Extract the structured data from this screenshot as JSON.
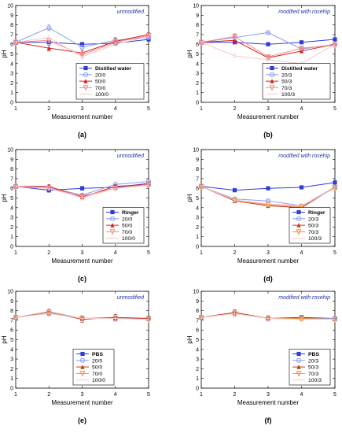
{
  "chart_data": [
    {
      "type": "line",
      "panel_label": "(a)",
      "annotation": "unmodified",
      "xlabel": "Measurement number",
      "ylabel": "pH",
      "xlim": [
        1,
        5
      ],
      "ylim": [
        0,
        10
      ],
      "x_ticks": [
        1,
        2,
        3,
        4,
        5
      ],
      "y_ticks": [
        0,
        1,
        2,
        3,
        4,
        5,
        6,
        7,
        8,
        9,
        10
      ],
      "grid": false,
      "legend_position": "bottom-right",
      "x": [
        1,
        2,
        3,
        4,
        5
      ],
      "series": [
        {
          "name": "Distilled water",
          "color": "#2c3ed6",
          "marker": "square",
          "values": [
            6.2,
            6.2,
            6.0,
            6.1,
            6.5
          ],
          "errors": [
            0.1,
            0.15,
            0.2,
            0.15,
            0.15
          ]
        },
        {
          "name": "20/0",
          "color": "#8a9cf2",
          "marker": "circle",
          "values": [
            6.2,
            7.7,
            5.7,
            6.4,
            6.7
          ],
          "errors": [
            0.1,
            0.3,
            0.2,
            0.3,
            0.2
          ]
        },
        {
          "name": "50/0",
          "color": "#d42222",
          "marker": "triangle",
          "values": [
            6.2,
            5.6,
            5.1,
            6.3,
            7.0
          ],
          "errors": [
            0.1,
            0.3,
            0.25,
            0.3,
            0.2
          ]
        },
        {
          "name": "70/0",
          "color": "#f48a8a",
          "marker": "triangle-down",
          "values": [
            6.2,
            6.4,
            4.9,
            6.2,
            6.9
          ],
          "errors": [
            0.1,
            0.25,
            0.3,
            0.3,
            0.2
          ]
        },
        {
          "name": "100/0",
          "color": "#f6c8c8",
          "marker": "none",
          "values": [
            6.2,
            6.7,
            4.7,
            6.0,
            6.8
          ],
          "errors": [
            0.1,
            0.2,
            0.3,
            0.2,
            0.2
          ]
        }
      ]
    },
    {
      "type": "line",
      "panel_label": "(b)",
      "annotation": "modified with rosehip",
      "xlabel": "Measurement number",
      "ylabel": "pH",
      "xlim": [
        1,
        5
      ],
      "ylim": [
        0,
        10
      ],
      "x_ticks": [
        1,
        2,
        3,
        4,
        5
      ],
      "y_ticks": [
        0,
        1,
        2,
        3,
        4,
        5,
        6,
        7,
        8,
        9,
        10
      ],
      "grid": false,
      "legend_position": "bottom-right",
      "x": [
        1,
        2,
        3,
        4,
        5
      ],
      "series": [
        {
          "name": "Distilled water",
          "color": "#2c3ed6",
          "marker": "square",
          "values": [
            6.2,
            6.2,
            6.0,
            6.2,
            6.5
          ],
          "errors": [
            0.1,
            0.15,
            0.15,
            0.15,
            0.15
          ]
        },
        {
          "name": "20/3",
          "color": "#8a9cf2",
          "marker": "circle",
          "values": [
            6.2,
            6.7,
            7.2,
            5.5,
            6.0
          ],
          "errors": [
            0.1,
            0.3,
            0.2,
            0.2,
            0.2
          ]
        },
        {
          "name": "50/3",
          "color": "#d42222",
          "marker": "triangle",
          "values": [
            6.2,
            6.4,
            4.6,
            5.3,
            6.0
          ],
          "errors": [
            0.1,
            0.3,
            0.2,
            0.2,
            0.2
          ]
        },
        {
          "name": "70/3",
          "color": "#f48a8a",
          "marker": "triangle-down",
          "values": [
            6.2,
            6.8,
            4.7,
            5.6,
            5.9
          ],
          "errors": [
            0.1,
            0.3,
            0.2,
            0.2,
            0.2
          ]
        },
        {
          "name": "100/3",
          "color": "#f6c8c8",
          "marker": "none",
          "values": [
            6.2,
            4.8,
            4.4,
            4.0,
            6.0
          ],
          "errors": [
            0.1,
            0.2,
            0.2,
            0.2,
            0.2
          ]
        }
      ]
    },
    {
      "type": "line",
      "panel_label": "(c)",
      "annotation": "unmodified",
      "xlabel": "Measurement number",
      "ylabel": "pH",
      "xlim": [
        1,
        5
      ],
      "ylim": [
        0,
        10
      ],
      "x_ticks": [
        1,
        2,
        3,
        4,
        5
      ],
      "y_ticks": [
        0,
        1,
        2,
        3,
        4,
        5,
        6,
        7,
        8,
        9,
        10
      ],
      "grid": false,
      "legend_position": "bottom-right",
      "x": [
        1,
        2,
        3,
        4,
        5
      ],
      "series": [
        {
          "name": "Ringer",
          "color": "#2c3ed6",
          "marker": "square",
          "values": [
            6.2,
            5.8,
            6.0,
            6.1,
            6.5
          ],
          "errors": [
            0.1,
            0.2,
            0.2,
            0.2,
            0.15
          ]
        },
        {
          "name": "20/0",
          "color": "#8a9cf2",
          "marker": "circle",
          "values": [
            6.2,
            6.1,
            5.3,
            6.4,
            6.7
          ],
          "errors": [
            0.1,
            0.2,
            0.2,
            0.2,
            0.2
          ]
        },
        {
          "name": "50/0",
          "color": "#d42222",
          "marker": "triangle",
          "values": [
            6.2,
            6.2,
            5.1,
            6.2,
            6.4
          ],
          "errors": [
            0.1,
            0.2,
            0.2,
            0.2,
            0.2
          ]
        },
        {
          "name": "70/0",
          "color": "#f48a8a",
          "marker": "triangle-down",
          "values": [
            6.2,
            6.0,
            5.2,
            6.0,
            6.4
          ],
          "errors": [
            0.1,
            0.2,
            0.2,
            0.2,
            0.2
          ]
        },
        {
          "name": "100/0",
          "color": "#f6c8c8",
          "marker": "none",
          "values": [
            6.2,
            6.0,
            5.0,
            6.0,
            6.3
          ],
          "errors": [
            0.1,
            0.2,
            0.2,
            0.2,
            0.2
          ]
        }
      ]
    },
    {
      "type": "line",
      "panel_label": "(d)",
      "annotation": "modified with rosehip",
      "xlabel": "Measurement number",
      "ylabel": "pH",
      "xlim": [
        1,
        5
      ],
      "ylim": [
        0,
        10
      ],
      "x_ticks": [
        1,
        2,
        3,
        4,
        5
      ],
      "y_ticks": [
        0,
        1,
        2,
        3,
        4,
        5,
        6,
        7,
        8,
        9,
        10
      ],
      "grid": false,
      "legend_position": "bottom-right",
      "x": [
        1,
        2,
        3,
        4,
        5
      ],
      "series": [
        {
          "name": "Ringer",
          "color": "#2c3ed6",
          "marker": "square",
          "values": [
            6.2,
            5.8,
            6.0,
            6.1,
            6.6
          ],
          "errors": [
            0.1,
            0.15,
            0.15,
            0.15,
            0.15
          ]
        },
        {
          "name": "20/3",
          "color": "#8a9cf2",
          "marker": "circle",
          "values": [
            6.2,
            4.9,
            4.7,
            4.2,
            6.1
          ],
          "errors": [
            0.1,
            0.2,
            0.2,
            0.2,
            0.2
          ]
        },
        {
          "name": "50/3",
          "color": "#c33a1a",
          "marker": "triangle",
          "values": [
            6.2,
            4.7,
            4.2,
            4.0,
            6.1
          ],
          "errors": [
            0.1,
            0.2,
            0.2,
            0.2,
            0.2
          ]
        },
        {
          "name": "70/3",
          "color": "#f0903c",
          "marker": "triangle-down",
          "values": [
            6.2,
            4.8,
            4.3,
            4.1,
            6.1
          ],
          "errors": [
            0.1,
            0.2,
            0.2,
            0.2,
            0.2
          ]
        },
        {
          "name": "100/3",
          "color": "#f6c8c8",
          "marker": "none",
          "values": [
            6.2,
            4.8,
            4.4,
            4.2,
            6.0
          ],
          "errors": [
            0.1,
            0.2,
            0.2,
            0.2,
            0.2
          ]
        }
      ]
    },
    {
      "type": "line",
      "panel_label": "(e)",
      "annotation": "unmodified",
      "xlabel": "Measurement number",
      "ylabel": "pH",
      "xlim": [
        1,
        5
      ],
      "ylim": [
        0,
        10
      ],
      "x_ticks": [
        1,
        2,
        3,
        4,
        5
      ],
      "y_ticks": [
        0,
        1,
        2,
        3,
        4,
        5,
        6,
        7,
        8,
        9,
        10
      ],
      "grid": false,
      "legend_position": "bottom-left",
      "x": [
        1,
        2,
        3,
        4,
        5
      ],
      "series": [
        {
          "name": "PBS",
          "color": "#2c3ed6",
          "marker": "square",
          "values": [
            7.3,
            7.8,
            7.2,
            7.2,
            7.2
          ],
          "errors": [
            0.1,
            0.3,
            0.3,
            0.3,
            0.2
          ]
        },
        {
          "name": "20/0",
          "color": "#8a9cf2",
          "marker": "circle",
          "values": [
            7.3,
            7.9,
            7.2,
            7.3,
            7.2
          ],
          "errors": [
            0.1,
            0.3,
            0.3,
            0.3,
            0.2
          ]
        },
        {
          "name": "50/0",
          "color": "#c33a1a",
          "marker": "triangle",
          "values": [
            7.3,
            7.8,
            7.1,
            7.3,
            7.2
          ],
          "errors": [
            0.1,
            0.3,
            0.3,
            0.3,
            0.2
          ]
        },
        {
          "name": "70/0",
          "color": "#f0903c",
          "marker": "triangle-down",
          "values": [
            7.3,
            7.8,
            7.2,
            7.2,
            7.1
          ],
          "errors": [
            0.1,
            0.3,
            0.3,
            0.3,
            0.2
          ]
        },
        {
          "name": "100/0",
          "color": "#f6c8c8",
          "marker": "none",
          "values": [
            7.3,
            7.7,
            7.2,
            7.2,
            7.1
          ],
          "errors": [
            0.1,
            0.3,
            0.3,
            0.3,
            0.2
          ]
        }
      ]
    },
    {
      "type": "line",
      "panel_label": "(f)",
      "annotation": "modified with rosehip",
      "xlabel": "Measurement number",
      "ylabel": "pH",
      "xlim": [
        1,
        5
      ],
      "ylim": [
        0,
        10
      ],
      "x_ticks": [
        1,
        2,
        3,
        4,
        5
      ],
      "y_ticks": [
        0,
        1,
        2,
        3,
        4,
        5,
        6,
        7,
        8,
        9,
        10
      ],
      "grid": false,
      "legend_position": "bottom-right",
      "x": [
        1,
        2,
        3,
        4,
        5
      ],
      "series": [
        {
          "name": "PBS",
          "color": "#2c3ed6",
          "marker": "square",
          "values": [
            7.3,
            7.8,
            7.2,
            7.3,
            7.2
          ],
          "errors": [
            0.1,
            0.3,
            0.3,
            0.2,
            0.2
          ]
        },
        {
          "name": "20/3",
          "color": "#8a9cf2",
          "marker": "circle",
          "values": [
            7.3,
            7.8,
            7.2,
            7.2,
            7.2
          ],
          "errors": [
            0.1,
            0.3,
            0.3,
            0.2,
            0.2
          ]
        },
        {
          "name": "50/3",
          "color": "#c33a1a",
          "marker": "triangle",
          "values": [
            7.3,
            7.8,
            7.2,
            7.2,
            7.1
          ],
          "errors": [
            0.1,
            0.3,
            0.3,
            0.2,
            0.2
          ]
        },
        {
          "name": "70/3",
          "color": "#f0903c",
          "marker": "triangle-down",
          "values": [
            7.3,
            7.7,
            7.2,
            7.2,
            7.1
          ],
          "errors": [
            0.1,
            0.3,
            0.3,
            0.2,
            0.2
          ]
        },
        {
          "name": "100/3",
          "color": "#f6c8c8",
          "marker": "none",
          "values": [
            7.3,
            7.7,
            7.2,
            7.1,
            7.1
          ],
          "errors": [
            0.1,
            0.3,
            0.3,
            0.2,
            0.2
          ]
        }
      ]
    }
  ]
}
